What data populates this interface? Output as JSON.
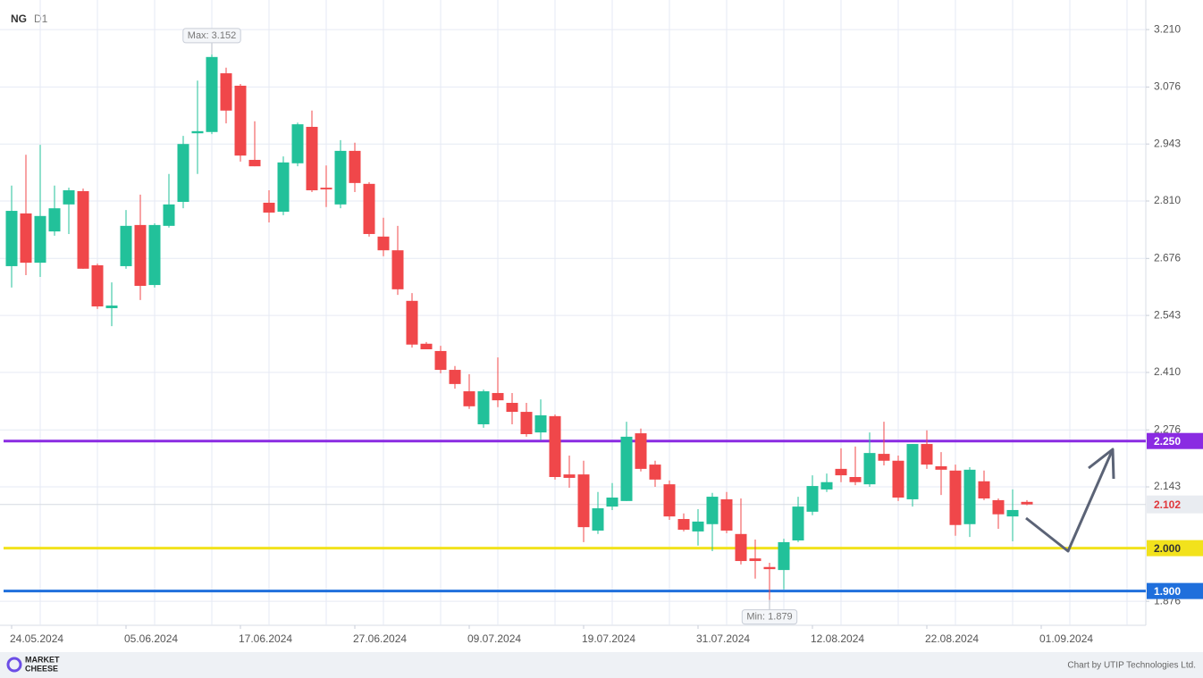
{
  "chart_data": {
    "type": "candlestick",
    "symbol": "NG",
    "timeframe": "D1",
    "open": [
      2.658,
      2.781,
      2.666,
      2.739,
      2.802,
      2.833,
      2.66,
      2.56,
      2.658,
      2.754,
      2.614,
      2.752,
      2.808,
      2.968,
      2.971,
      3.108,
      3.079,
      2.906,
      2.806,
      2.785,
      2.898,
      2.983,
      2.841,
      2.802,
      2.927,
      2.85,
      2.727,
      2.695,
      2.577,
      2.477,
      2.46,
      2.416,
      2.366,
      2.289,
      2.362,
      2.339,
      2.318,
      2.27,
      2.308,
      2.172,
      2.172,
      2.041,
      2.097,
      2.11,
      2.268,
      2.195,
      2.149,
      2.068,
      2.039,
      2.056,
      2.114,
      2.033,
      1.976,
      1.956,
      1.949,
      2.018,
      2.085,
      2.137,
      2.185,
      2.166,
      2.149,
      2.22,
      2.204,
      2.114,
      2.243,
      2.191,
      2.181,
      2.056,
      2.156,
      2.112,
      2.074,
      2.108
    ],
    "high": [
      2.846,
      2.918,
      2.941,
      2.846,
      2.841,
      2.839,
      2.664,
      2.62,
      2.789,
      2.825,
      2.758,
      2.873,
      2.962,
      3.091,
      3.152,
      3.121,
      3.083,
      2.996,
      2.835,
      2.914,
      2.993,
      3.021,
      2.893,
      2.952,
      2.946,
      2.854,
      2.771,
      2.752,
      2.595,
      2.481,
      2.472,
      2.425,
      2.406,
      2.37,
      2.445,
      2.362,
      2.339,
      2.347,
      2.312,
      2.216,
      2.204,
      2.131,
      2.152,
      2.295,
      2.279,
      2.204,
      2.158,
      2.081,
      2.091,
      2.129,
      2.131,
      2.116,
      2.02,
      1.966,
      2.022,
      2.12,
      2.17,
      2.174,
      2.233,
      2.237,
      2.27,
      2.295,
      2.216,
      2.243,
      2.275,
      2.224,
      2.195,
      2.189,
      2.181,
      2.116,
      2.137,
      2.112
    ],
    "low": [
      2.608,
      2.637,
      2.633,
      2.729,
      2.733,
      2.652,
      2.558,
      2.518,
      2.652,
      2.579,
      2.608,
      2.748,
      2.793,
      2.873,
      2.966,
      2.991,
      2.902,
      2.891,
      2.76,
      2.777,
      2.891,
      2.831,
      2.796,
      2.793,
      2.831,
      2.727,
      2.681,
      2.591,
      2.468,
      2.464,
      2.408,
      2.372,
      2.325,
      2.281,
      2.329,
      2.289,
      2.26,
      2.252,
      2.16,
      2.141,
      2.014,
      2.033,
      2.089,
      2.11,
      2.179,
      2.143,
      2.066,
      2.039,
      2.006,
      1.993,
      2.035,
      1.962,
      1.929,
      1.879,
      1.904,
      2.014,
      2.077,
      2.131,
      2.154,
      2.147,
      2.143,
      2.193,
      2.11,
      2.097,
      2.185,
      2.124,
      2.029,
      2.026,
      2.112,
      2.045,
      2.016,
      2.1
    ],
    "close": [
      2.787,
      2.666,
      2.775,
      2.793,
      2.835,
      2.652,
      2.564,
      2.566,
      2.752,
      2.612,
      2.754,
      2.802,
      2.943,
      2.973,
      3.146,
      3.021,
      2.916,
      2.891,
      2.783,
      2.9,
      2.989,
      2.835,
      2.837,
      2.927,
      2.852,
      2.733,
      2.695,
      2.604,
      2.475,
      2.464,
      2.416,
      2.383,
      2.331,
      2.366,
      2.345,
      2.318,
      2.266,
      2.31,
      2.166,
      2.164,
      2.049,
      2.093,
      2.118,
      2.26,
      2.185,
      2.16,
      2.074,
      2.043,
      2.062,
      2.12,
      2.041,
      1.97,
      1.97,
      1.951,
      2.014,
      2.097,
      2.145,
      2.154,
      2.17,
      2.154,
      2.222,
      2.204,
      2.118,
      2.243,
      2.195,
      2.183,
      2.054,
      2.183,
      2.116,
      2.079,
      2.089,
      2.102
    ],
    "up_color": "#22c19a",
    "down_color": "#f0474a",
    "xticks": [
      "24.05.2024",
      "05.06.2024",
      "17.06.2024",
      "27.06.2024",
      "09.07.2024",
      "19.07.2024",
      "31.07.2024",
      "12.08.2024",
      "22.08.2024",
      "01.09.2024"
    ],
    "ylim": [
      1.82,
      3.279
    ],
    "yticks": [
      {
        "value": 3.21,
        "label": "3.210"
      },
      3.076,
      2.943,
      {
        "value": 2.81,
        "label": "2.810"
      },
      2.676,
      2.543,
      {
        "value": 2.41,
        "label": "2.410"
      },
      2.276,
      2.143,
      1.876
    ],
    "grid": true,
    "levels": [
      {
        "value": 2.25,
        "label": "2.250",
        "color": "#8a2be2"
      },
      {
        "value": 2.0,
        "label": "2.000",
        "color": "#f2e21c"
      },
      {
        "value": 1.9,
        "label": "1.900",
        "color": "#1f6fdc"
      }
    ],
    "current_price": 2.102,
    "annotations": {
      "max": "Max: 3.152",
      "min": "Min: 1.879"
    },
    "brand": [
      "MARKET",
      "CHEESE"
    ],
    "credit": "Chart by UTIP Technologies Ltd."
  }
}
